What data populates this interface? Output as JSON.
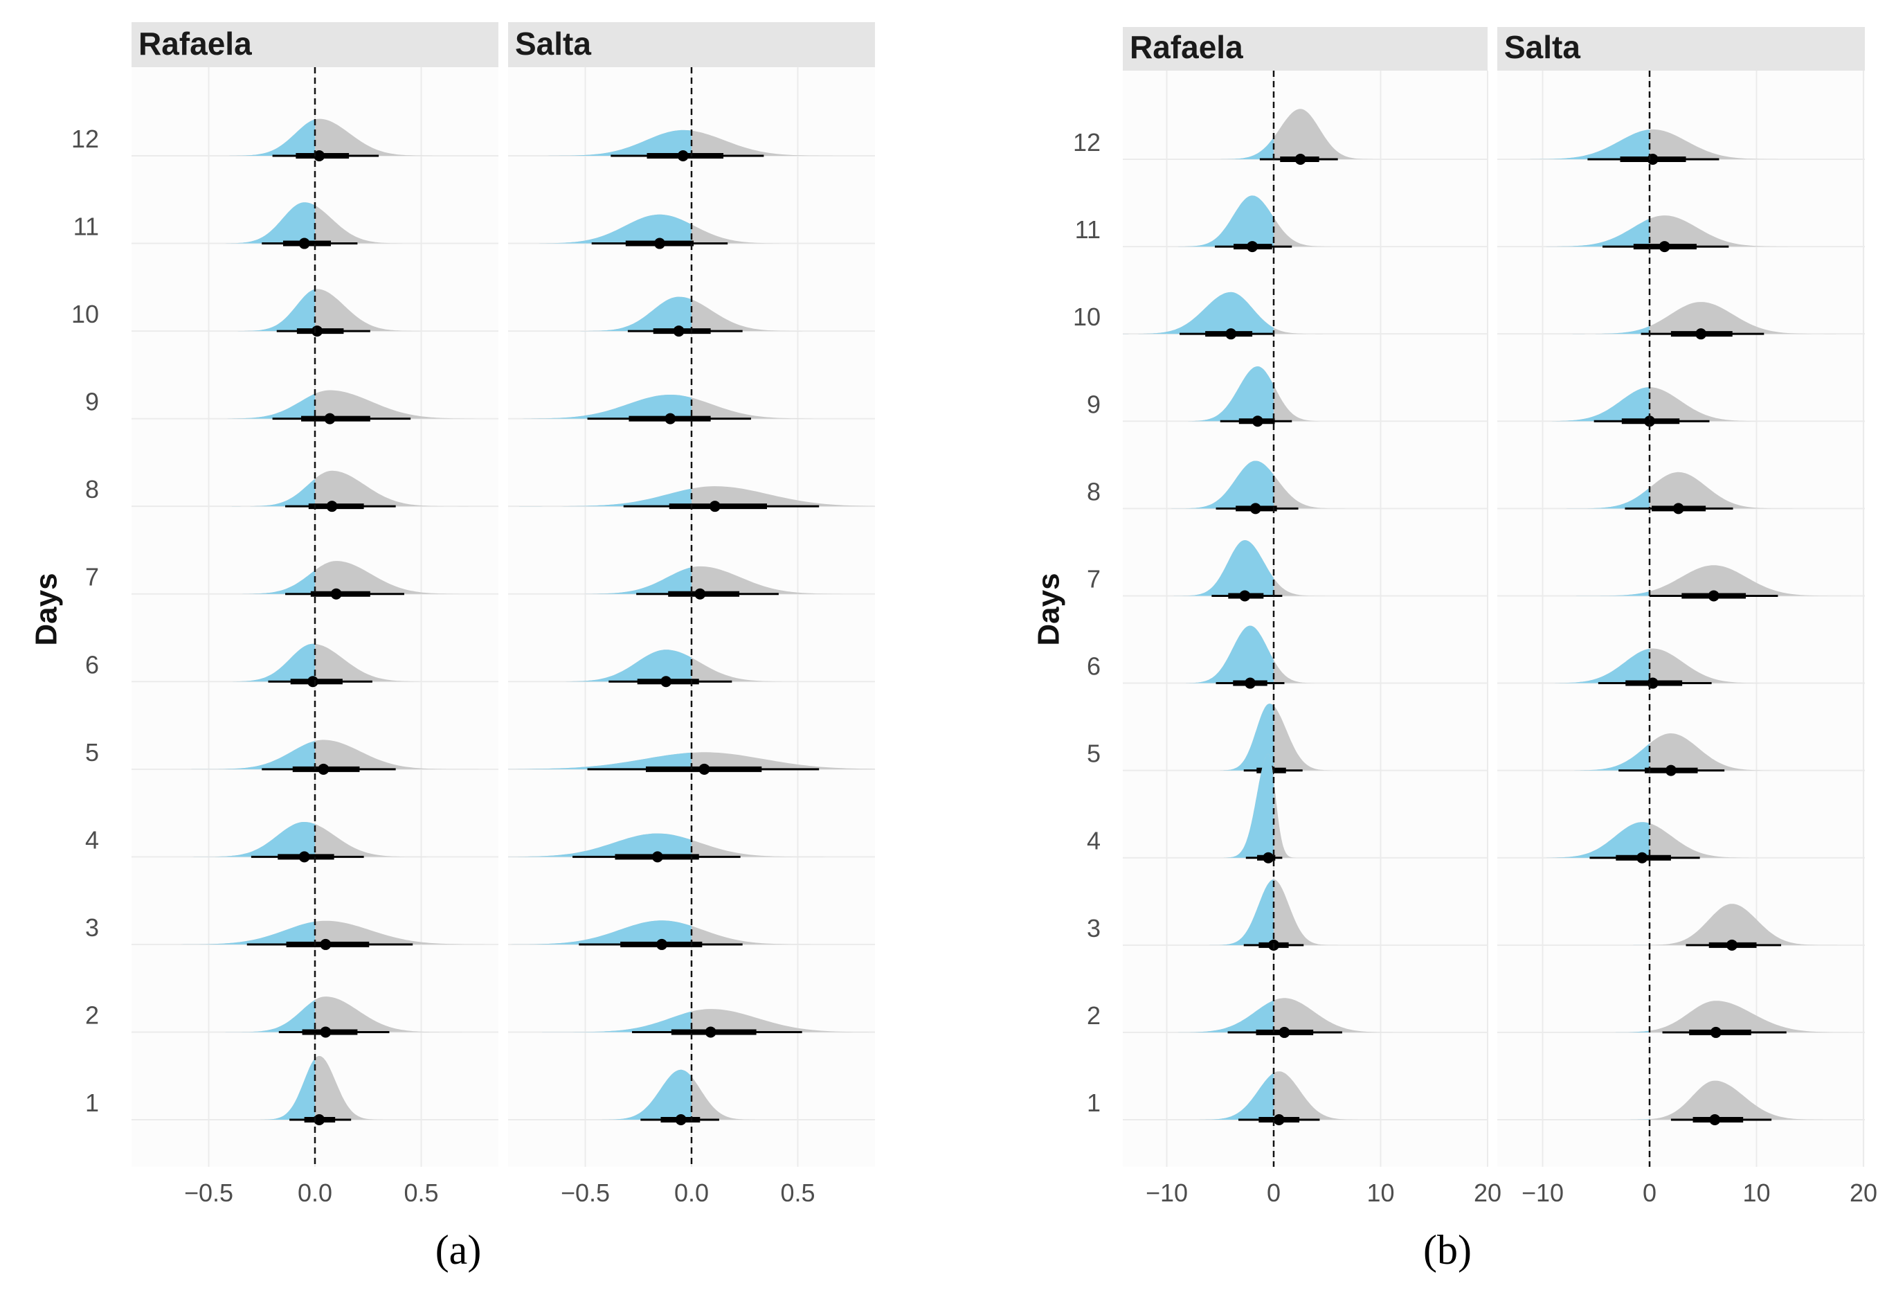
{
  "chart_data": [
    {
      "type": "ridgeline-density",
      "panel_label": "(a)",
      "ylabel": "Days",
      "days": [
        12,
        11,
        10,
        9,
        8,
        7,
        6,
        5,
        4,
        3,
        2,
        1
      ],
      "xlim": [
        -0.85,
        0.87
      ],
      "xticks": [
        -0.5,
        0.0,
        0.5
      ],
      "xtick_labels": [
        "−0.5",
        "0.0",
        "0.5"
      ],
      "reference_line": 0,
      "facets": [
        {
          "name": "Rafaela",
          "median": [
            0.02,
            -0.05,
            0.01,
            0.07,
            0.08,
            0.1,
            -0.01,
            0.04,
            -0.05,
            0.05,
            0.05,
            0.02
          ],
          "ci95_low": [
            -0.2,
            -0.25,
            -0.18,
            -0.2,
            -0.14,
            -0.14,
            -0.22,
            -0.25,
            -0.3,
            -0.32,
            -0.17,
            -0.12
          ],
          "ci95_high": [
            0.3,
            0.2,
            0.26,
            0.45,
            0.38,
            0.42,
            0.27,
            0.38,
            0.23,
            0.46,
            0.35,
            0.17
          ]
        },
        {
          "name": "Salta",
          "median": [
            -0.04,
            -0.15,
            -0.06,
            -0.1,
            0.11,
            0.04,
            -0.12,
            0.06,
            -0.16,
            -0.14,
            0.09,
            -0.05
          ],
          "ci95_low": [
            -0.38,
            -0.47,
            -0.3,
            -0.49,
            -0.32,
            -0.26,
            -0.39,
            -0.49,
            -0.56,
            -0.53,
            -0.28,
            -0.24
          ],
          "ci95_high": [
            0.34,
            0.17,
            0.24,
            0.28,
            0.6,
            0.41,
            0.19,
            0.6,
            0.23,
            0.24,
            0.52,
            0.13
          ]
        }
      ]
    },
    {
      "type": "ridgeline-density",
      "panel_label": "(b)",
      "ylabel": "Days",
      "days": [
        12,
        11,
        10,
        9,
        8,
        7,
        6,
        5,
        4,
        3,
        2,
        1
      ],
      "xlim": [
        -14.5,
        20
      ],
      "xticks": [
        -10,
        0,
        10,
        20
      ],
      "xtick_labels": [
        "−10",
        "0",
        "10",
        "20"
      ],
      "reference_line": 0,
      "facets": [
        {
          "name": "Rafaela",
          "median": [
            2.5,
            -2.0,
            -4.0,
            -1.5,
            -1.7,
            -2.7,
            -2.2,
            -0.4,
            -0.5,
            0.0,
            1.0,
            0.5
          ],
          "ci95_low": [
            -1.3,
            -5.5,
            -8.8,
            -5.0,
            -5.4,
            -5.8,
            -5.4,
            -2.8,
            -2.6,
            -2.8,
            -4.3,
            -3.3
          ],
          "ci95_high": [
            6.0,
            1.7,
            0.0,
            1.7,
            2.3,
            0.8,
            1.0,
            2.7,
            0.8,
            2.8,
            6.4,
            4.3
          ]
        },
        {
          "name": "Salta",
          "median": [
            0.3,
            1.4,
            4.8,
            0.0,
            2.7,
            6.0,
            0.3,
            2.0,
            -0.7,
            7.7,
            6.2,
            6.1
          ],
          "ci95_low": [
            -5.8,
            -4.4,
            -0.8,
            -5.2,
            -2.3,
            0.0,
            -4.8,
            -2.9,
            -5.6,
            3.4,
            1.2,
            2.0
          ],
          "ci95_high": [
            6.5,
            7.4,
            10.7,
            5.6,
            7.8,
            12.0,
            5.8,
            7.0,
            4.7,
            12.3,
            12.8,
            11.4
          ]
        }
      ]
    }
  ],
  "colors": {
    "negative": "#87cee9",
    "positive": "#c8c8c8",
    "strip": "#e5e5e5",
    "interval": "#000000"
  }
}
